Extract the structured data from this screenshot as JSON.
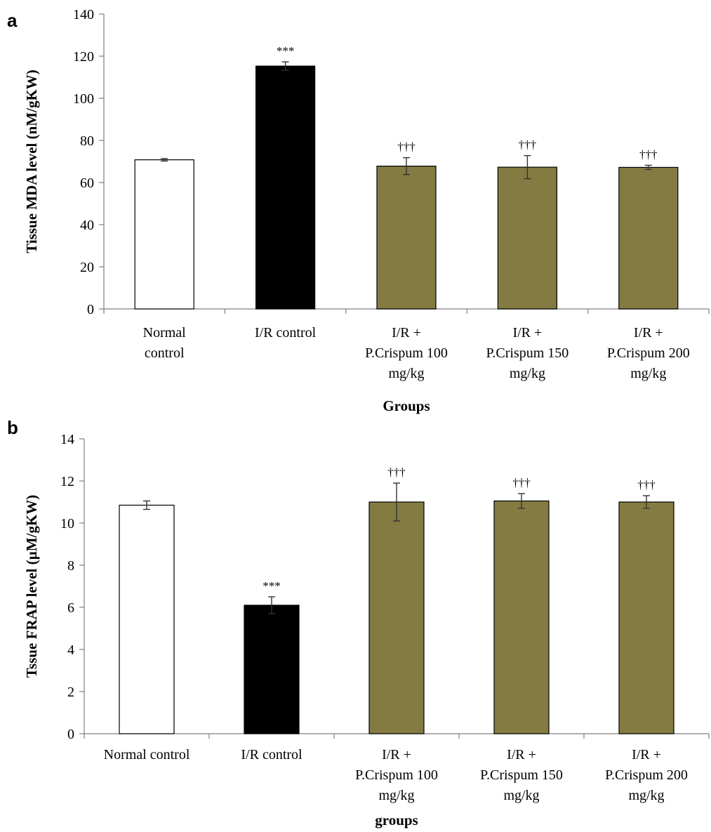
{
  "chart_data": [
    {
      "panel": "a",
      "type": "bar",
      "categories": [
        [
          "Normal",
          "control"
        ],
        [
          "I/R control"
        ],
        [
          "I/R +",
          "P.Crispum  100",
          "mg/kg"
        ],
        [
          "I/R +",
          "P.Crispum  150",
          "mg/kg"
        ],
        [
          "I/R +",
          "P.Crispum  200",
          "mg/kg"
        ]
      ],
      "values": [
        70.8,
        115.3,
        67.8,
        67.3,
        67.2
      ],
      "errors": [
        0.6,
        2.0,
        4.0,
        5.5,
        1.0
      ],
      "significance": [
        "",
        "***",
        "†††",
        "†††",
        "†††"
      ],
      "colors": [
        "#ffffff",
        "#000000",
        "#847b43",
        "#847b43",
        "#847b43"
      ],
      "xlabel": "Groups",
      "ylabel": "Tissue  MDA level (nM/gKW)",
      "ylim": [
        0,
        140
      ],
      "yticks": [
        0,
        20,
        40,
        60,
        80,
        100,
        120,
        140
      ]
    },
    {
      "panel": "b",
      "type": "bar",
      "categories": [
        [
          "Normal control"
        ],
        [
          "I/R control"
        ],
        [
          "I/R +",
          "P.Crispum  100",
          "mg/kg"
        ],
        [
          "I/R +",
          "P.Crispum  150",
          "mg/kg"
        ],
        [
          "I/R +",
          "P.Crispum  200",
          "mg/kg"
        ]
      ],
      "values": [
        10.85,
        6.1,
        11.0,
        11.05,
        11.0
      ],
      "errors": [
        0.2,
        0.4,
        0.9,
        0.35,
        0.3
      ],
      "significance": [
        "",
        "***",
        "†††",
        "†††",
        "†††"
      ],
      "colors": [
        "#ffffff",
        "#000000",
        "#847b43",
        "#847b43",
        "#847b43"
      ],
      "xlabel": "groups",
      "ylabel": "Tssue FRAP level (µM/gKW)",
      "ylim": [
        0,
        14
      ],
      "yticks": [
        0,
        2,
        4,
        6,
        8,
        10,
        12,
        14
      ]
    }
  ]
}
